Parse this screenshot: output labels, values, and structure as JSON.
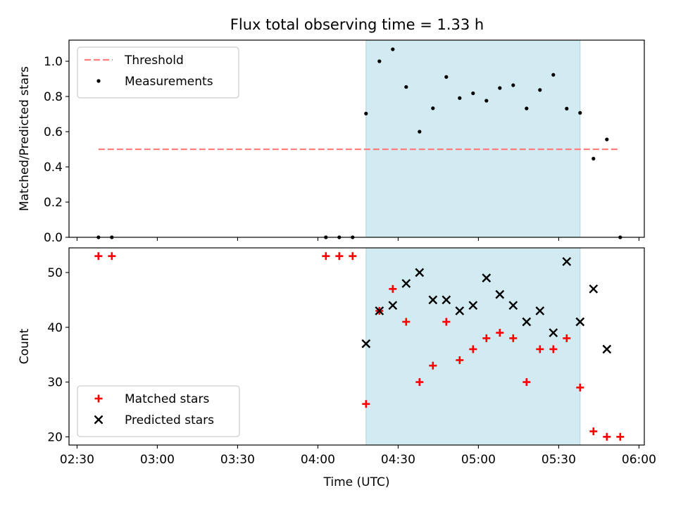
{
  "figure": {
    "title": "Flux total observing time = 1.33 h"
  },
  "chart_data": [
    {
      "type": "scatter",
      "title": "Flux total observing time = 1.33 h",
      "xlabel": "",
      "ylabel": "Matched/Predicted stars",
      "xlim": [
        "02:27",
        "06:02"
      ],
      "ylim": [
        0,
        1.12
      ],
      "yticks": [
        0.0,
        0.2,
        0.4,
        0.6,
        0.8,
        1.0
      ],
      "xticks": [
        "02:30",
        "03:00",
        "03:30",
        "04:00",
        "04:30",
        "05:00",
        "05:30",
        "06:00"
      ],
      "grid": false,
      "legend_position": "top-left",
      "shaded_region": {
        "start": "04:18",
        "end": "05:38",
        "color": "#add8e6"
      },
      "threshold": {
        "name": "Threshold",
        "value": 0.5,
        "start": "02:38",
        "end": "05:53",
        "color": "#ff7f7f"
      },
      "series": [
        {
          "name": "Measurements",
          "color": "#000000",
          "points": [
            {
              "x": "02:38",
              "y": 0.0
            },
            {
              "x": "02:43",
              "y": 0.0
            },
            {
              "x": "04:03",
              "y": 0.0
            },
            {
              "x": "04:08",
              "y": 0.0
            },
            {
              "x": "04:13",
              "y": 0.0
            },
            {
              "x": "04:18",
              "y": 0.703
            },
            {
              "x": "04:23",
              "y": 1.0
            },
            {
              "x": "04:28",
              "y": 1.068
            },
            {
              "x": "04:33",
              "y": 0.854
            },
            {
              "x": "04:38",
              "y": 0.6
            },
            {
              "x": "04:43",
              "y": 0.733
            },
            {
              "x": "04:48",
              "y": 0.911
            },
            {
              "x": "04:53",
              "y": 0.791
            },
            {
              "x": "04:58",
              "y": 0.818
            },
            {
              "x": "05:03",
              "y": 0.776
            },
            {
              "x": "05:08",
              "y": 0.848
            },
            {
              "x": "05:13",
              "y": 0.864
            },
            {
              "x": "05:18",
              "y": 0.732
            },
            {
              "x": "05:23",
              "y": 0.837
            },
            {
              "x": "05:28",
              "y": 0.923
            },
            {
              "x": "05:33",
              "y": 0.731
            },
            {
              "x": "05:38",
              "y": 0.707
            },
            {
              "x": "05:43",
              "y": 0.447
            },
            {
              "x": "05:48",
              "y": 0.556
            },
            {
              "x": "05:53",
              "y": 0.0
            }
          ]
        }
      ]
    },
    {
      "type": "scatter",
      "title": "",
      "xlabel": "Time (UTC)",
      "ylabel": "Count",
      "xlim": [
        "02:27",
        "06:02"
      ],
      "ylim": [
        18.5,
        54.5
      ],
      "yticks": [
        20,
        30,
        40,
        50
      ],
      "xticks": [
        "02:30",
        "03:00",
        "03:30",
        "04:00",
        "04:30",
        "05:00",
        "05:30",
        "06:00"
      ],
      "grid": false,
      "legend_position": "bottom-left",
      "shaded_region": {
        "start": "04:18",
        "end": "05:38",
        "color": "#add8e6"
      },
      "series": [
        {
          "name": "Matched stars",
          "marker": "plus",
          "color": "#ff0000",
          "points": [
            {
              "x": "02:38",
              "y": 53
            },
            {
              "x": "02:43",
              "y": 53
            },
            {
              "x": "04:03",
              "y": 53
            },
            {
              "x": "04:08",
              "y": 53
            },
            {
              "x": "04:13",
              "y": 53
            },
            {
              "x": "04:18",
              "y": 26
            },
            {
              "x": "04:23",
              "y": 43
            },
            {
              "x": "04:28",
              "y": 47
            },
            {
              "x": "04:33",
              "y": 41
            },
            {
              "x": "04:38",
              "y": 30
            },
            {
              "x": "04:43",
              "y": 33
            },
            {
              "x": "04:48",
              "y": 41
            },
            {
              "x": "04:53",
              "y": 34
            },
            {
              "x": "04:58",
              "y": 36
            },
            {
              "x": "05:03",
              "y": 38
            },
            {
              "x": "05:08",
              "y": 39
            },
            {
              "x": "05:13",
              "y": 38
            },
            {
              "x": "05:18",
              "y": 30
            },
            {
              "x": "05:23",
              "y": 36
            },
            {
              "x": "05:28",
              "y": 36
            },
            {
              "x": "05:33",
              "y": 38
            },
            {
              "x": "05:38",
              "y": 29
            },
            {
              "x": "05:43",
              "y": 21
            },
            {
              "x": "05:48",
              "y": 20
            },
            {
              "x": "05:53",
              "y": 20
            }
          ]
        },
        {
          "name": "Predicted stars",
          "marker": "x",
          "color": "#000000",
          "points": [
            {
              "x": "04:18",
              "y": 37
            },
            {
              "x": "04:23",
              "y": 43
            },
            {
              "x": "04:28",
              "y": 44
            },
            {
              "x": "04:33",
              "y": 48
            },
            {
              "x": "04:38",
              "y": 50
            },
            {
              "x": "04:43",
              "y": 45
            },
            {
              "x": "04:48",
              "y": 45
            },
            {
              "x": "04:53",
              "y": 43
            },
            {
              "x": "04:58",
              "y": 44
            },
            {
              "x": "05:03",
              "y": 49
            },
            {
              "x": "05:08",
              "y": 46
            },
            {
              "x": "05:13",
              "y": 44
            },
            {
              "x": "05:18",
              "y": 41
            },
            {
              "x": "05:23",
              "y": 43
            },
            {
              "x": "05:28",
              "y": 39
            },
            {
              "x": "05:33",
              "y": 52
            },
            {
              "x": "05:38",
              "y": 41
            },
            {
              "x": "05:43",
              "y": 47
            },
            {
              "x": "05:48",
              "y": 36
            }
          ]
        }
      ]
    }
  ]
}
